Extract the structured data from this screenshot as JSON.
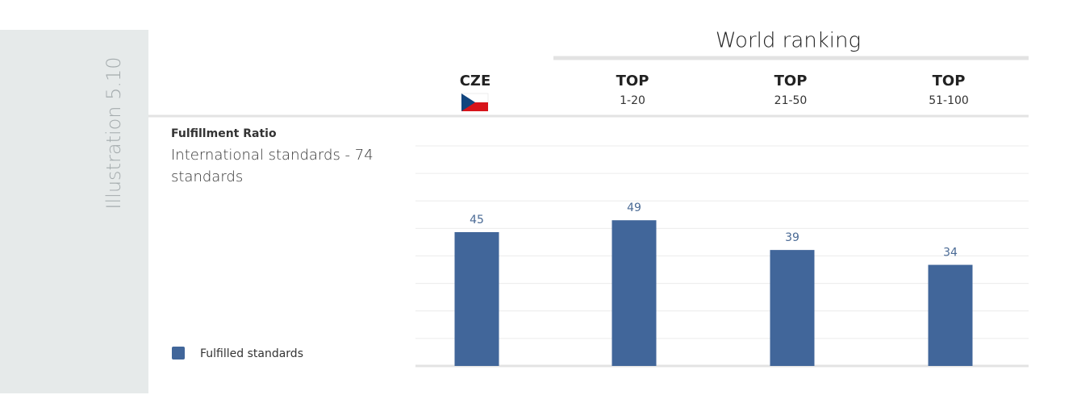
{
  "chart_data": {
    "type": "bar",
    "label": "Illustration 5.10",
    "title": "World ranking",
    "subtitle": "Fulfillment Ratio",
    "description": "International standards - 74 standards",
    "categories": [
      "CZE",
      "TOP",
      "TOP",
      "TOP"
    ],
    "category_sublabels": [
      null,
      "1-20",
      "21-50",
      "51-100"
    ],
    "series": [
      {
        "name": "Fulfilled standards",
        "color": "#41669a",
        "values": [
          45,
          49,
          39,
          34
        ]
      }
    ],
    "ylim": [
      0,
      74
    ],
    "yticks": [
      0,
      9.25,
      18.5,
      27.75,
      37,
      46.25,
      55.5,
      64.75,
      74
    ],
    "grid": true
  }
}
